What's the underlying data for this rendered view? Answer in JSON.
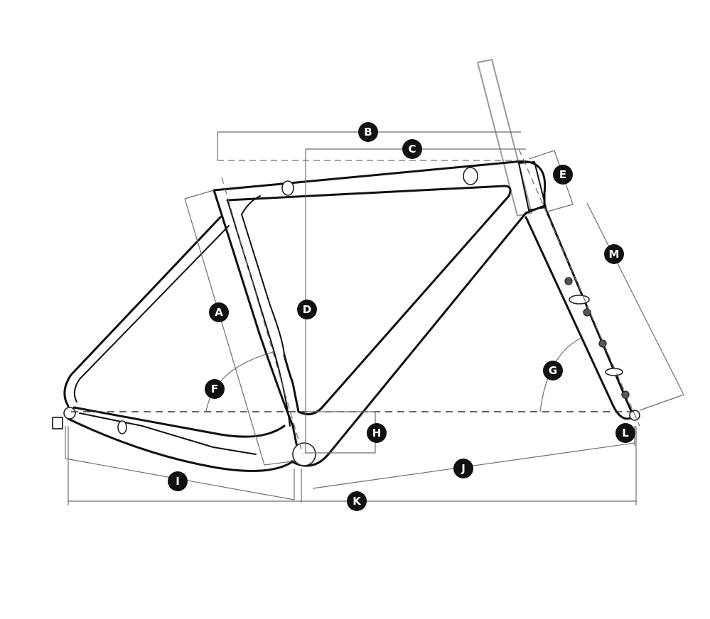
{
  "diagram": {
    "type": "bicycle-frame-geometry",
    "labels": {
      "A": "A",
      "B": "B",
      "C": "C",
      "D": "D",
      "E": "E",
      "F": "F",
      "G": "G",
      "H": "H",
      "I": "I",
      "J": "J",
      "K": "K",
      "L": "L",
      "M": "M"
    },
    "colors": {
      "frame": "#111111",
      "dimension_line": "#6e6e6e",
      "fork": "#9a9a9a",
      "badge": "#111111",
      "badge_text": "#ffffff"
    }
  }
}
